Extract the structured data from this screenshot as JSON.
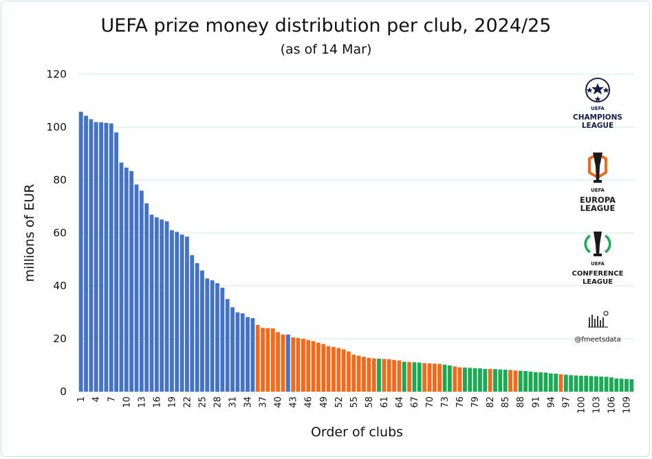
{
  "chart_data": {
    "type": "bar",
    "title": "UEFA prize money distribution per club, 2024/25",
    "subtitle": "(as of 14 Mar)",
    "xlabel": "Order of clubs",
    "ylabel": "millions of EUR",
    "ylim": [
      0,
      120
    ],
    "yticks": [
      0,
      20,
      40,
      60,
      80,
      100,
      120
    ],
    "grid": true,
    "x_tick_every": 3,
    "competitions": {
      "UCL": {
        "name": "Champions League",
        "color": "#4472c4"
      },
      "UEL": {
        "name": "Europa League",
        "color": "#f26b1d"
      },
      "UECL": {
        "name": "Conference League",
        "color": "#1aaa55"
      }
    },
    "values": [
      105.8,
      104.3,
      103.0,
      101.9,
      101.8,
      101.6,
      101.4,
      98.0,
      86.6,
      84.7,
      83.4,
      78.3,
      76.0,
      71.2,
      66.9,
      65.9,
      65.1,
      64.4,
      61.0,
      60.4,
      59.4,
      58.6,
      51.6,
      48.6,
      45.8,
      42.8,
      42.1,
      41.0,
      39.3,
      35.0,
      31.9,
      30.0,
      29.6,
      28.2,
      27.8,
      25.2,
      24.1,
      24.0,
      23.9,
      22.5,
      21.6,
      21.6,
      20.5,
      20.3,
      20.0,
      19.5,
      19.1,
      18.5,
      18.0,
      17.2,
      16.9,
      16.5,
      16.0,
      15.2,
      14.0,
      13.6,
      13.2,
      12.8,
      12.6,
      12.5,
      12.4,
      12.3,
      12.0,
      11.8,
      11.3,
      11.2,
      11.1,
      11.0,
      10.8,
      10.7,
      10.6,
      10.5,
      10.2,
      9.9,
      9.5,
      9.2,
      9.1,
      9.0,
      8.9,
      8.8,
      8.6,
      8.6,
      8.5,
      8.4,
      8.3,
      8.2,
      8.0,
      7.9,
      7.8,
      7.6,
      7.4,
      7.3,
      7.2,
      6.9,
      6.8,
      6.6,
      6.4,
      6.2,
      6.1,
      6.0,
      6.0,
      5.9,
      5.8,
      5.7,
      5.6,
      5.4,
      5.0,
      4.9,
      4.8,
      4.7
    ],
    "competition": [
      "UCL",
      "UCL",
      "UCL",
      "UCL",
      "UCL",
      "UCL",
      "UCL",
      "UCL",
      "UCL",
      "UCL",
      "UCL",
      "UCL",
      "UCL",
      "UCL",
      "UCL",
      "UCL",
      "UCL",
      "UCL",
      "UCL",
      "UCL",
      "UCL",
      "UCL",
      "UCL",
      "UCL",
      "UCL",
      "UCL",
      "UCL",
      "UCL",
      "UCL",
      "UCL",
      "UCL",
      "UCL",
      "UCL",
      "UCL",
      "UCL",
      "UEL",
      "UEL",
      "UEL",
      "UEL",
      "UEL",
      "UEL",
      "UCL",
      "UEL",
      "UEL",
      "UEL",
      "UEL",
      "UEL",
      "UEL",
      "UEL",
      "UEL",
      "UEL",
      "UEL",
      "UEL",
      "UEL",
      "UEL",
      "UEL",
      "UEL",
      "UEL",
      "UEL",
      "UECL",
      "UEL",
      "UEL",
      "UEL",
      "UEL",
      "UECL",
      "UEL",
      "UECL",
      "UECL",
      "UEL",
      "UEL",
      "UEL",
      "UEL",
      "UECL",
      "UECL",
      "UEL",
      "UEL",
      "UECL",
      "UECL",
      "UECL",
      "UECL",
      "UECL",
      "UEL",
      "UECL",
      "UECL",
      "UECL",
      "UEL",
      "UEL",
      "UECL",
      "UECL",
      "UECL",
      "UECL",
      "UECL",
      "UECL",
      "UECL",
      "UECL",
      "UEL",
      "UECL",
      "UECL",
      "UECL",
      "UECL",
      "UECL",
      "UECL",
      "UECL",
      "UECL",
      "UECL",
      "UECL",
      "UECL",
      "UECL",
      "UECL",
      "UECL"
    ]
  },
  "logos": {
    "ucl": {
      "line1": "UEFA",
      "line2": "CHAMPIONS",
      "line3": "LEAGUE"
    },
    "uel": {
      "line1": "UEFA",
      "line2": "EUROPA",
      "line3": "LEAGUE"
    },
    "uecl": {
      "line1": "UEFA",
      "line2": "CONFERENCE",
      "line3": "LEAGUE"
    }
  },
  "credit": "@fmeetsdata",
  "colors": {
    "grid": "#d6efe0",
    "frame": "#c9e8d2",
    "text": "#111111"
  }
}
